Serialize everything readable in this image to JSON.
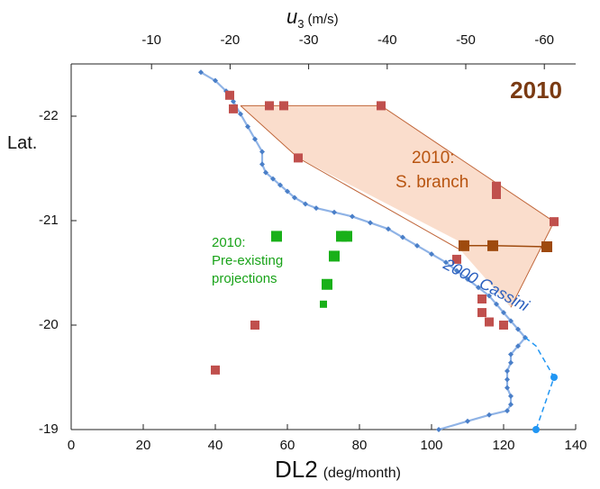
{
  "chart_data": {
    "type": "scatter",
    "title": "2010",
    "x_axis": {
      "label": "DL2",
      "label_unit": "(deg/month)",
      "range": [
        0,
        140
      ],
      "ticks": [
        0,
        20,
        40,
        60,
        80,
        100,
        120,
        140
      ],
      "tick_labels": [
        "0",
        "20",
        "40",
        "60",
        "80",
        "100",
        "120",
        "140"
      ]
    },
    "x2_axis": {
      "label_var": "u",
      "label_sub": "3",
      "label_unit": "(m/s)",
      "ticks": [
        -10,
        -20,
        -30,
        -40,
        -50,
        -60
      ],
      "tick_labels": [
        "-10",
        "-20",
        "-30",
        "-40",
        "-50",
        "-60"
      ]
    },
    "y_axis": {
      "label": "Lat.",
      "range": [
        -22.5,
        -19
      ],
      "ticks": [
        -22,
        -21,
        -20,
        -19
      ],
      "tick_labels": [
        "-22",
        "-21",
        "-20",
        "-19"
      ]
    },
    "series": [
      {
        "name": "2000 Cassini",
        "color": "#4a7fc8",
        "points": [
          [
            36,
            -22.42
          ],
          [
            40,
            -22.34
          ],
          [
            43,
            -22.24
          ],
          [
            45,
            -22.14
          ],
          [
            47,
            -22.02
          ],
          [
            49,
            -21.9
          ],
          [
            51,
            -21.78
          ],
          [
            53,
            -21.66
          ],
          [
            53,
            -21.54
          ],
          [
            54,
            -21.46
          ],
          [
            56,
            -21.4
          ],
          [
            58,
            -21.34
          ],
          [
            60,
            -21.28
          ],
          [
            62,
            -21.22
          ],
          [
            65,
            -21.16
          ],
          [
            68,
            -21.12
          ],
          [
            73,
            -21.08
          ],
          [
            78,
            -21.04
          ],
          [
            83,
            -20.98
          ],
          [
            88,
            -20.92
          ],
          [
            92,
            -20.84
          ],
          [
            96,
            -20.76
          ],
          [
            100,
            -20.68
          ],
          [
            104,
            -20.6
          ],
          [
            107,
            -20.52
          ],
          [
            110,
            -20.44
          ],
          [
            113,
            -20.36
          ],
          [
            116,
            -20.28
          ],
          [
            118,
            -20.2
          ],
          [
            120,
            -20.12
          ],
          [
            122,
            -20.04
          ],
          [
            124,
            -19.96
          ],
          [
            126,
            -19.88
          ],
          [
            124,
            -19.8
          ],
          [
            122,
            -19.72
          ],
          [
            122,
            -19.64
          ],
          [
            121,
            -19.56
          ],
          [
            121,
            -19.48
          ],
          [
            121,
            -19.4
          ],
          [
            122,
            -19.32
          ],
          [
            122,
            -19.24
          ],
          [
            121,
            -19.18
          ],
          [
            116,
            -19.14
          ],
          [
            110,
            -19.08
          ],
          [
            102,
            -19.0
          ]
        ]
      },
      {
        "name": "",
        "color": "#2196f3",
        "dashed": true,
        "points": [
          [
            126,
            -19.88
          ],
          [
            129,
            -19.8
          ],
          [
            134,
            -19.5
          ],
          [
            129,
            -19.0
          ]
        ],
        "markers": [
          [
            134,
            -19.5
          ],
          [
            129,
            -19.0
          ]
        ]
      },
      {
        "name": "",
        "color": "#c0504d",
        "points": [
          [
            45,
            -22.07
          ],
          [
            44,
            -22.2
          ],
          [
            55,
            -22.1
          ],
          [
            59,
            -22.1
          ],
          [
            86,
            -22.1
          ],
          [
            63,
            -21.6
          ],
          [
            118,
            -21.33
          ],
          [
            118,
            -21.25
          ],
          [
            134,
            -20.99
          ],
          [
            107,
            -20.63
          ],
          [
            114,
            -20.25
          ],
          [
            114,
            -20.12
          ],
          [
            116,
            -20.03
          ],
          [
            120,
            -20.0
          ],
          [
            51,
            -20.0
          ],
          [
            40,
            -19.57
          ]
        ]
      },
      {
        "name": "",
        "color": "#9e4a0e",
        "points": [
          [
            109,
            -20.76
          ],
          [
            117,
            -20.76
          ],
          [
            132,
            -20.75
          ]
        ]
      },
      {
        "name": "",
        "color": "#19b019",
        "points": [
          [
            57,
            -20.85
          ],
          [
            75,
            -20.85
          ],
          [
            73,
            -20.66
          ],
          [
            71,
            -20.39
          ],
          [
            76.5,
            -20.85
          ]
        ]
      }
    ],
    "green_small_point": [
      70,
      -20.2
    ],
    "shaded_region": {
      "name": "2010: S. branch",
      "color": "#f9d7c3",
      "points": [
        [
          47,
          -22.1
        ],
        [
          86,
          -22.1
        ],
        [
          134,
          -20.99
        ],
        [
          122,
          -20.17
        ],
        [
          108,
          -20.72
        ],
        [
          110,
          -20.76
        ],
        [
          63,
          -21.6
        ]
      ]
    },
    "shaded_outline_extra": [
      [
        86,
        -22.1
      ],
      [
        134,
        -20.99
      ],
      [
        122,
        -20.17
      ]
    ],
    "annotations": [
      {
        "lines": [
          "2010:",
          "S. branch"
        ],
        "at": [
          90,
          -21.55
        ],
        "color": "#b85410"
      },
      {
        "lines": [
          "2010:",
          "Pre-existing",
          "projections"
        ],
        "at": [
          39,
          -20.75
        ],
        "color": "#19a319"
      },
      {
        "lines": [
          "2000 Cassini"
        ],
        "at": [
          103,
          -20.55
        ],
        "color": "#2a5fbf"
      }
    ],
    "grid": false
  }
}
